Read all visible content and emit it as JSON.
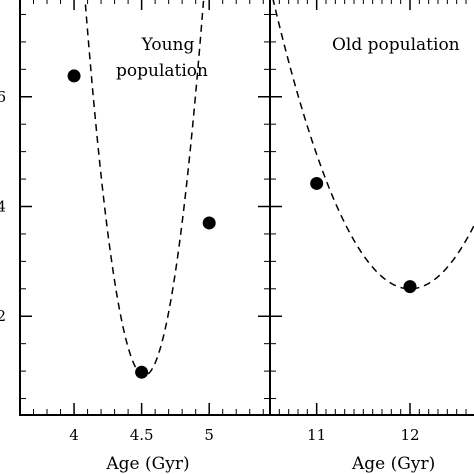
{
  "chart_data": [
    {
      "type": "scatter",
      "title": "",
      "annotation": [
        "Young",
        "population"
      ],
      "xlabel": "Age (Gyr)",
      "ylabel": "",
      "xticks": [
        "4",
        "4.5",
        "5"
      ],
      "xtick_values": [
        4,
        4.5,
        5
      ],
      "xlim": [
        3.6,
        5.45
      ],
      "y_tick_labels": [
        "6",
        "4",
        "2"
      ],
      "ytick_values": [
        6,
        4,
        2
      ],
      "ylim": [
        0.2,
        7.8
      ],
      "grid": false,
      "series": [
        {
          "points": [
            {
              "x": 4.0,
              "y": 6.38
            },
            {
              "x": 4.5,
              "y": 0.98
            },
            {
              "x": 5.0,
              "y": 3.7
            }
          ]
        }
      ],
      "fit_curve": {
        "style": "dashed",
        "form": "parabola",
        "vertex": [
          4.52,
          0.92
        ],
        "coef": 35.6
      }
    },
    {
      "type": "scatter",
      "title": "",
      "annotation": [
        "Old population"
      ],
      "xlabel": "Age (Gyr)",
      "ylabel": "",
      "xticks": [
        "11",
        "12"
      ],
      "xtick_values": [
        11,
        12
      ],
      "xlim": [
        10.5,
        12.75
      ],
      "y_tick_labels": [],
      "grid": false,
      "series": [
        {
          "points": [
            {
              "x": 11.0,
              "y": 4.42
            },
            {
              "x": 12.0,
              "y": 2.54
            }
          ]
        }
      ],
      "fit_curve": {
        "style": "dashed",
        "form": "parabola",
        "vertex": [
          12.0,
          2.5
        ],
        "coef": 2.45
      }
    }
  ]
}
